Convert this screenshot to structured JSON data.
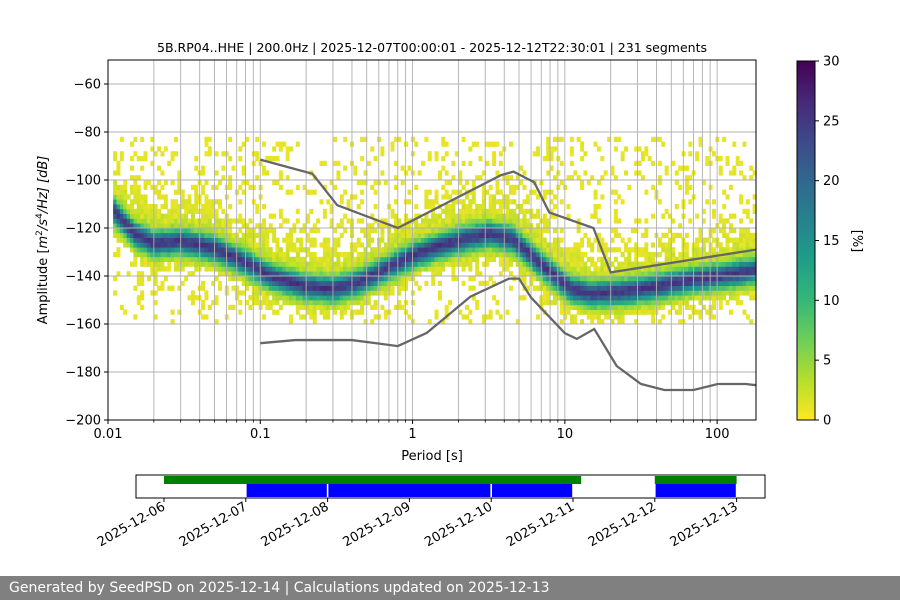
{
  "chart_data": [
    {
      "type": "heatmap",
      "title": "5B.RP04..HHE | 200.0Hz | 2025-12-07T00:00:01 - 2025-12-12T22:30:01 | 231 segments",
      "xlabel": "Period [s]",
      "ylabel_parts": {
        "prefix": "Amplitude [",
        "m": "m",
        "exp1": "2",
        "mid": "/s",
        "exp2": "4",
        "suffix": "/Hz] [dB]"
      },
      "xscale": "log",
      "xlim": [
        0.01,
        180
      ],
      "ylim": [
        -200,
        -50
      ],
      "grid": true,
      "xticks": [
        {
          "value": 0.01,
          "label": "0.01"
        },
        {
          "value": 0.1,
          "label": "0.1"
        },
        {
          "value": 1,
          "label": "1"
        },
        {
          "value": 10,
          "label": "10"
        },
        {
          "value": 100,
          "label": "100"
        }
      ],
      "yticks": [
        {
          "value": -60,
          "label": "−60"
        },
        {
          "value": -80,
          "label": "−80"
        },
        {
          "value": -100,
          "label": "−100"
        },
        {
          "value": -120,
          "label": "−120"
        },
        {
          "value": -140,
          "label": "−140"
        },
        {
          "value": -160,
          "label": "−160"
        },
        {
          "value": -180,
          "label": "−180"
        },
        {
          "value": -200,
          "label": "−200"
        }
      ],
      "colorbar": {
        "label": "[%]",
        "range": [
          0,
          30
        ],
        "ticks": [
          {
            "value": 0,
            "label": "0"
          },
          {
            "value": 5,
            "label": "5"
          },
          {
            "value": 10,
            "label": "10"
          },
          {
            "value": 15,
            "label": "15"
          },
          {
            "value": 20,
            "label": "20"
          },
          {
            "value": 25,
            "label": "25"
          },
          {
            "value": 30,
            "label": "30"
          }
        ],
        "colors": [
          "#fde725",
          "#b5de2b",
          "#6ece58",
          "#35b779",
          "#1f9e89",
          "#26828e",
          "#31688e",
          "#3e4989",
          "#482878",
          "#440154"
        ]
      },
      "psd_mode": [
        [
          0.0108,
          -112
        ],
        [
          0.015,
          -122
        ],
        [
          0.02,
          -126
        ],
        [
          0.03,
          -125
        ],
        [
          0.05,
          -128
        ],
        [
          0.08,
          -134
        ],
        [
          0.12,
          -140
        ],
        [
          0.2,
          -144
        ],
        [
          0.3,
          -145
        ],
        [
          0.45,
          -142
        ],
        [
          0.7,
          -136
        ],
        [
          1.0,
          -131
        ],
        [
          1.5,
          -127
        ],
        [
          2.2,
          -124
        ],
        [
          3.2,
          -122
        ],
        [
          4.5,
          -124
        ],
        [
          6.0,
          -131
        ],
        [
          8.0,
          -138
        ],
        [
          11,
          -145
        ],
        [
          15,
          -147
        ],
        [
          25,
          -146
        ],
        [
          40,
          -144
        ],
        [
          70,
          -141
        ],
        [
          120,
          -139
        ],
        [
          180,
          -137
        ]
      ],
      "nhnm": [
        [
          0.1,
          -91.5
        ],
        [
          0.22,
          -97.4
        ],
        [
          0.32,
          -110.5
        ],
        [
          0.8,
          -120
        ],
        [
          3.8,
          -98
        ],
        [
          4.6,
          -96.5
        ],
        [
          6.3,
          -101
        ],
        [
          7.9,
          -113.5
        ],
        [
          15.4,
          -120
        ],
        [
          20,
          -138.5
        ],
        [
          180,
          -129
        ]
      ],
      "nlnm": [
        [
          0.1,
          -168
        ],
        [
          0.17,
          -166.7
        ],
        [
          0.4,
          -166.7
        ],
        [
          0.8,
          -169.2
        ],
        [
          1.24,
          -163.7
        ],
        [
          2.4,
          -148.6
        ],
        [
          4.3,
          -141.1
        ],
        [
          5.0,
          -141.1
        ],
        [
          6.0,
          -149
        ],
        [
          10,
          -163.8
        ],
        [
          12,
          -166.2
        ],
        [
          15.6,
          -162.1
        ],
        [
          21.9,
          -177.5
        ],
        [
          31.6,
          -185
        ],
        [
          45,
          -187.5
        ],
        [
          70,
          -187.5
        ],
        [
          101,
          -185
        ],
        [
          154,
          -185
        ],
        [
          180,
          -185.5
        ]
      ]
    },
    {
      "type": "timeline",
      "xlim": [
        "2025-12-06",
        "2025-12-13"
      ],
      "xticks": [
        "2025-12-06",
        "2025-12-07",
        "2025-12-08",
        "2025-12-09",
        "2025-12-10",
        "2025-12-11",
        "2025-12-12",
        "2025-12-13"
      ],
      "available_color": "#008000",
      "used_color": "#0000ff",
      "available": [
        [
          0.0,
          5.1
        ],
        [
          6.0,
          7.0
        ]
      ],
      "used": [
        [
          1.0,
          2.0
        ],
        [
          2.0,
          4.0
        ],
        [
          4.0,
          5.0
        ],
        [
          6.0,
          7.0
        ]
      ]
    }
  ],
  "footer": {
    "text": "Generated by SeedPSD on 2025-12-14 | Calculations updated on 2025-12-13"
  }
}
